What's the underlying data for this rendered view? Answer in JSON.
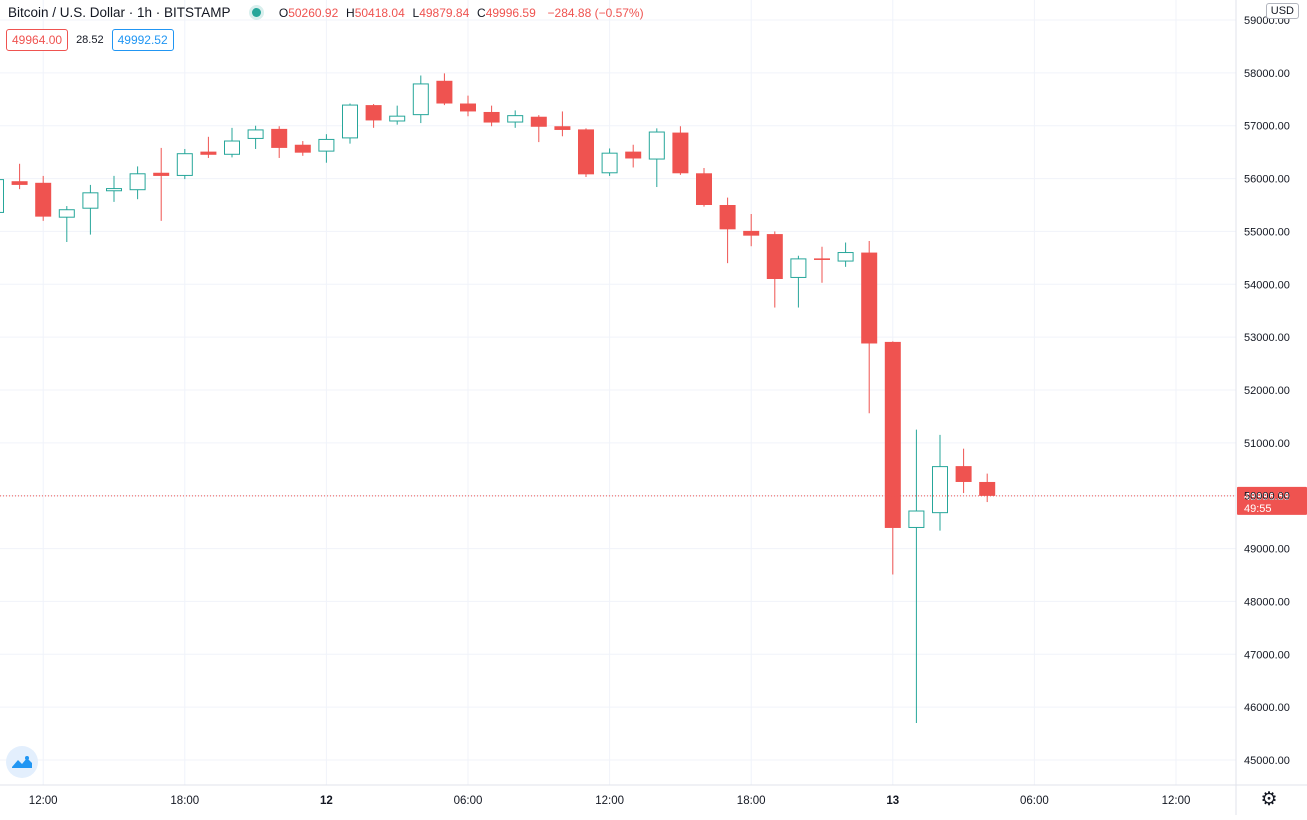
{
  "header": {
    "symbol": "Bitcoin / U.S. Dollar · 1h · BITSTAMP",
    "open_label": "O",
    "open": "50260.92",
    "high_label": "H",
    "high": "50418.04",
    "low_label": "L",
    "low": "49879.84",
    "close_label": "C",
    "close": "49996.59",
    "change": "−284.88 (−0.57%)"
  },
  "quotes": {
    "bid": "49964.00",
    "spread": "28.52",
    "ask": "49992.52"
  },
  "currency": "USD",
  "last_price_label": {
    "price": "49996.59",
    "countdown": "49:55"
  },
  "colors": {
    "up": "#26a69a",
    "down": "#ef5350",
    "grid": "#f0f3fa",
    "axis_text": "#131722"
  },
  "icons": {
    "settings": "gear-icon",
    "logo": "tradingview-logo-icon",
    "status": "market-open-dot-icon"
  },
  "chart_data": {
    "type": "candlestick",
    "interval": "1h",
    "x_tick_labels": [
      "12:00",
      "18:00",
      "12",
      "06:00",
      "12:00",
      "18:00",
      "13",
      "06:00",
      "12:00"
    ],
    "x_tick_bar_index": [
      2,
      8,
      14,
      20,
      26,
      32,
      38,
      44,
      50
    ],
    "y_ticks": [
      45000,
      46000,
      47000,
      48000,
      49000,
      50000,
      51000,
      52000,
      53000,
      54000,
      55000,
      56000,
      57000,
      58000,
      59000
    ],
    "y_tick_labels": [
      "45000.00",
      "46000.00",
      "47000.00",
      "48000.00",
      "49000.00",
      "50000.00",
      "51000.00",
      "52000.00",
      "53000.00",
      "54000.00",
      "55000.00",
      "56000.00",
      "57000.00",
      "58000.00",
      "59000.00"
    ],
    "ylim": [
      44700,
      59300
    ],
    "last_price": 49996.59,
    "grid": true,
    "candles": [
      {
        "o": 55350,
        "h": 56020,
        "l": 55300,
        "c": 55990
      },
      {
        "o": 55950,
        "h": 56280,
        "l": 55800,
        "c": 55880
      },
      {
        "o": 55920,
        "h": 56050,
        "l": 55200,
        "c": 55280
      },
      {
        "o": 55260,
        "h": 55480,
        "l": 54800,
        "c": 55420
      },
      {
        "o": 55430,
        "h": 55880,
        "l": 54940,
        "c": 55740
      },
      {
        "o": 55760,
        "h": 56050,
        "l": 55560,
        "c": 55820
      },
      {
        "o": 55780,
        "h": 56230,
        "l": 55610,
        "c": 56100
      },
      {
        "o": 56110,
        "h": 56580,
        "l": 55200,
        "c": 56050
      },
      {
        "o": 56050,
        "h": 56560,
        "l": 55990,
        "c": 56480
      },
      {
        "o": 56510,
        "h": 56790,
        "l": 56390,
        "c": 56450
      },
      {
        "o": 56450,
        "h": 56960,
        "l": 56400,
        "c": 56720
      },
      {
        "o": 56750,
        "h": 57000,
        "l": 56560,
        "c": 56930
      },
      {
        "o": 56940,
        "h": 56990,
        "l": 56390,
        "c": 56580
      },
      {
        "o": 56640,
        "h": 56710,
        "l": 56430,
        "c": 56490
      },
      {
        "o": 56510,
        "h": 56840,
        "l": 56300,
        "c": 56750
      },
      {
        "o": 56760,
        "h": 57420,
        "l": 56660,
        "c": 57400
      },
      {
        "o": 57390,
        "h": 57410,
        "l": 56960,
        "c": 57100
      },
      {
        "o": 57080,
        "h": 57380,
        "l": 57020,
        "c": 57190
      },
      {
        "o": 57200,
        "h": 57950,
        "l": 57050,
        "c": 57800
      },
      {
        "o": 57850,
        "h": 57990,
        "l": 57390,
        "c": 57420
      },
      {
        "o": 57420,
        "h": 57570,
        "l": 57180,
        "c": 57270
      },
      {
        "o": 57260,
        "h": 57380,
        "l": 56990,
        "c": 57060
      },
      {
        "o": 57060,
        "h": 57290,
        "l": 56960,
        "c": 57200
      },
      {
        "o": 57170,
        "h": 57200,
        "l": 56690,
        "c": 56980
      },
      {
        "o": 56990,
        "h": 57270,
        "l": 56800,
        "c": 56920
      },
      {
        "o": 56930,
        "h": 56950,
        "l": 56030,
        "c": 56080
      },
      {
        "o": 56100,
        "h": 56570,
        "l": 56050,
        "c": 56490
      },
      {
        "o": 56510,
        "h": 56640,
        "l": 56210,
        "c": 56380
      },
      {
        "o": 56360,
        "h": 56950,
        "l": 55840,
        "c": 56890
      },
      {
        "o": 56870,
        "h": 56990,
        "l": 56070,
        "c": 56100
      },
      {
        "o": 56100,
        "h": 56200,
        "l": 55470,
        "c": 55500
      },
      {
        "o": 55500,
        "h": 55640,
        "l": 54400,
        "c": 55040
      },
      {
        "o": 55010,
        "h": 55330,
        "l": 54720,
        "c": 54920
      },
      {
        "o": 54950,
        "h": 55000,
        "l": 53560,
        "c": 54100
      },
      {
        "o": 54120,
        "h": 54540,
        "l": 53560,
        "c": 54490
      },
      {
        "o": 54490,
        "h": 54710,
        "l": 54030,
        "c": 54460
      },
      {
        "o": 54430,
        "h": 54790,
        "l": 54330,
        "c": 54610
      },
      {
        "o": 54600,
        "h": 54820,
        "l": 51560,
        "c": 52880
      },
      {
        "o": 52910,
        "h": 52920,
        "l": 48510,
        "c": 49390
      },
      {
        "o": 49390,
        "h": 51250,
        "l": 45700,
        "c": 49720
      },
      {
        "o": 49670,
        "h": 51150,
        "l": 49340,
        "c": 50560
      },
      {
        "o": 50560,
        "h": 50890,
        "l": 50050,
        "c": 50260
      },
      {
        "o": 50260,
        "h": 50418,
        "l": 49880,
        "c": 49997
      }
    ]
  }
}
